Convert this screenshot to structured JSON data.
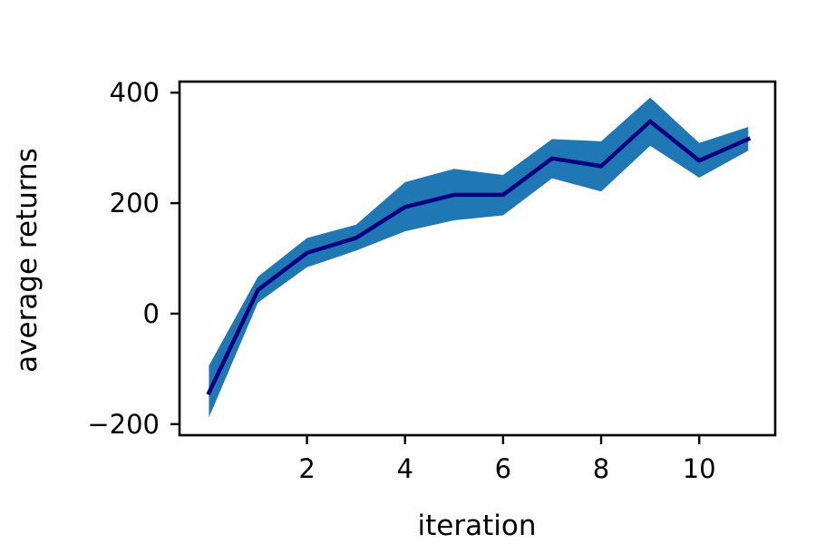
{
  "chart_data": {
    "type": "line",
    "title": "",
    "xlabel": "iteration",
    "ylabel": "average returns",
    "xlim": [
      -0.6,
      11.55
    ],
    "ylim": [
      -220,
      420
    ],
    "xticks": [
      2,
      4,
      6,
      8,
      10
    ],
    "xtick_labels": [
      "2",
      "4",
      "6",
      "8",
      "10"
    ],
    "yticks": [
      -200,
      0,
      200,
      400
    ],
    "ytick_labels": [
      "−200",
      "0",
      "200",
      "400"
    ],
    "grid": false,
    "legend": "none",
    "series": [
      {
        "x": [
          0,
          1,
          2,
          3,
          4,
          5,
          6,
          7,
          8,
          9,
          10,
          11
        ],
        "y": [
          -143,
          43,
          110,
          137,
          193,
          215,
          215,
          281,
          267,
          348,
          277,
          316
        ],
        "lower": [
          -188,
          20,
          84,
          114,
          149,
          169,
          178,
          245,
          221,
          304,
          246,
          295
        ],
        "upper": [
          -94,
          67,
          137,
          161,
          238,
          262,
          251,
          316,
          312,
          391,
          309,
          338
        ],
        "line_color": "#00007f",
        "band_color": "#1f77b4"
      }
    ]
  }
}
